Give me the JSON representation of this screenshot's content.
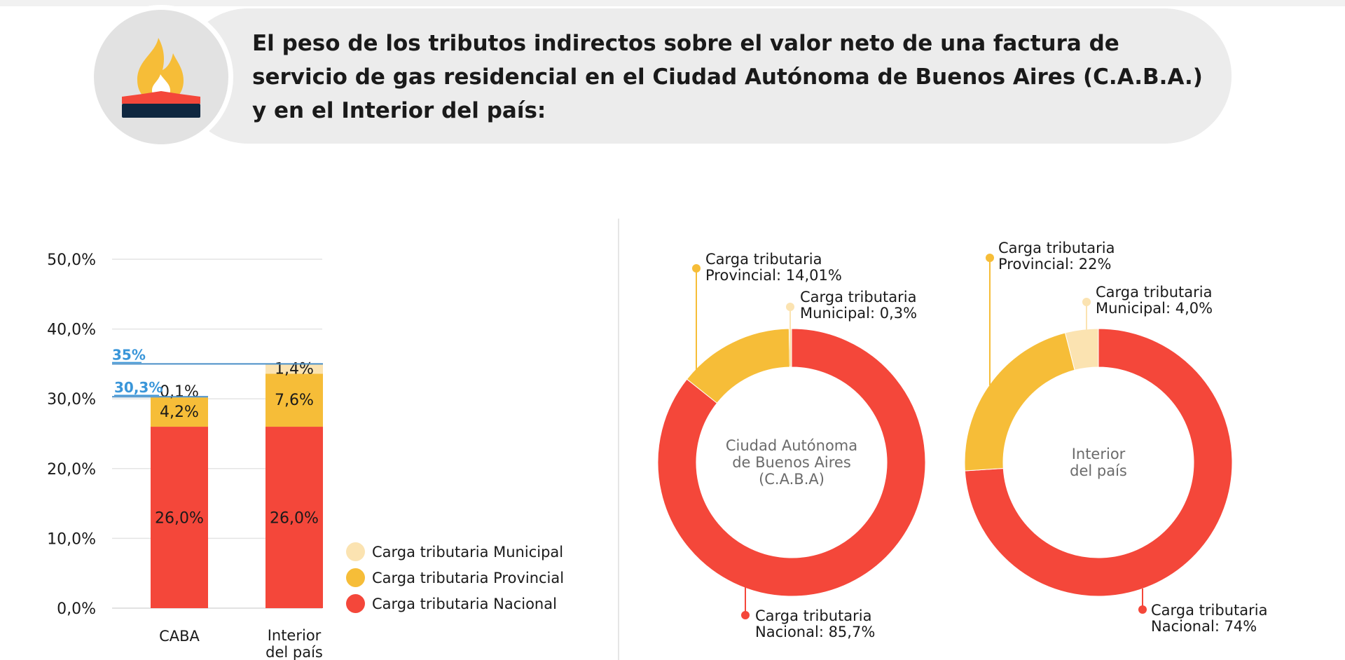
{
  "header": {
    "title_parts": [
      {
        "text": "El peso de los ",
        "bold": false
      },
      {
        "text": "tributos indirectos",
        "bold": true
      },
      {
        "text": " sobre el valor neto de una factura de servicio de gas residencial en el ",
        "bold": false
      },
      {
        "text": "Ciudad Autónoma de Buenos Aires (C.A.B.A.)",
        "bold": true
      },
      {
        "text": " y en el ",
        "bold": false
      },
      {
        "text": "Interior del país:",
        "bold": true
      }
    ],
    "icon": "gas-flame-icon"
  },
  "colors": {
    "nacional": "#f4473a",
    "provincial": "#f6bd38",
    "municipal": "#fbe3b1",
    "total_line": "#4a8fc7",
    "total_label": "#3a96d9",
    "grid": "#e4e4e4"
  },
  "legend": [
    {
      "label": "Carga tributaria Municipal",
      "color": "#fbe3b1"
    },
    {
      "label": "Carga tributaria Provincial",
      "color": "#f6bd38"
    },
    {
      "label": "Carga tributaria Nacional",
      "color": "#f4473a"
    }
  ],
  "chart_data": [
    {
      "type": "bar",
      "stacked": true,
      "categories": [
        "CABA",
        "Interior del país"
      ],
      "ylim": [
        0,
        50
      ],
      "yticks": [
        "0,0%",
        "10,0%",
        "20,0%",
        "30,0%",
        "40,0%",
        "50,0%"
      ],
      "grid": true,
      "legend_position": "bottom-right",
      "series": [
        {
          "name": "Carga tributaria Nacional",
          "values": [
            26.0,
            26.0
          ],
          "labels": [
            "26,0%",
            "26,0%"
          ]
        },
        {
          "name": "Carga tributaria Provincial",
          "values": [
            4.2,
            7.6
          ],
          "labels": [
            "4,2%",
            "7,6%"
          ]
        },
        {
          "name": "Carga tributaria Municipal",
          "values": [
            0.1,
            1.4
          ],
          "labels": [
            "0,1%",
            "1,4%"
          ]
        }
      ],
      "totals": [
        {
          "category": "CABA",
          "value": 30.3,
          "label": "30,3%"
        },
        {
          "category": "Interior del país",
          "value": 35,
          "label": "35%"
        }
      ]
    },
    {
      "type": "pie",
      "donut": true,
      "center_label": [
        "Ciudad Autónoma",
        "de Buenos Aires",
        "(C.A.B.A)"
      ],
      "slices": [
        {
          "name": "Carga tributaria Nacional",
          "value": 85.7,
          "label": [
            "Carga tributaria",
            "Nacional: 85,7%"
          ]
        },
        {
          "name": "Carga tributaria Provincial",
          "value": 14.01,
          "label": [
            "Carga tributaria",
            "Provincial: 14,01%"
          ]
        },
        {
          "name": "Carga tributaria Municipal",
          "value": 0.3,
          "label": [
            "Carga tributaria",
            "Municipal: 0,3%"
          ]
        }
      ]
    },
    {
      "type": "pie",
      "donut": true,
      "center_label": [
        "Interior",
        "del país"
      ],
      "slices": [
        {
          "name": "Carga tributaria Nacional",
          "value": 74,
          "label": [
            "Carga tributaria",
            "Nacional: 74%"
          ]
        },
        {
          "name": "Carga tributaria Provincial",
          "value": 22,
          "label": [
            "Carga tributaria",
            "Provincial: 22%"
          ]
        },
        {
          "name": "Carga tributaria Municipal",
          "value": 4.0,
          "label": [
            "Carga tributaria",
            "Municipal: 4,0%"
          ]
        }
      ]
    }
  ]
}
